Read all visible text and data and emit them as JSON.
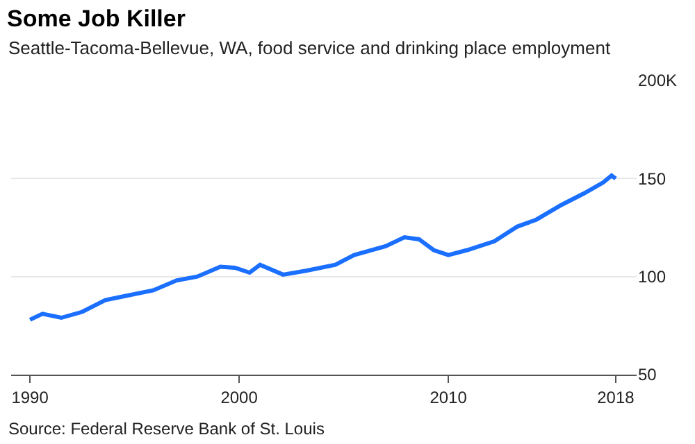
{
  "chart_data": {
    "type": "line",
    "title": "Some Job Killer",
    "subtitle": "Seattle-Tacoma-Bellevue, WA, food service and drinking place employment",
    "annotations": [
      "Source: Federal Reserve Bank of St. Louis"
    ],
    "x": [
      1990.0,
      1990.6,
      1991.5,
      1992.5,
      1993.6,
      1994.5,
      1995.9,
      1997.0,
      1998.0,
      1999.1,
      1999.8,
      2000.5,
      2001.0,
      2002.1,
      2003.2,
      2004.6,
      2005.5,
      2007.0,
      2007.9,
      2008.6,
      2009.3,
      2010.0,
      2010.9,
      2012.2,
      2013.3,
      2014.2,
      2015.4,
      2016.5,
      2017.4,
      2017.8,
      2018.0
    ],
    "series": [
      {
        "color": "#1a6fff",
        "values": [
          78,
          81,
          79,
          82,
          88,
          90,
          93,
          98,
          100,
          105,
          104.5,
          102,
          106,
          101,
          103,
          106,
          111,
          115.5,
          120,
          119,
          113.5,
          111,
          113.5,
          118,
          125.5,
          129,
          136.5,
          142.5,
          148,
          151.5,
          150
        ]
      }
    ],
    "xlim": [
      1989.1,
      2019.0
    ],
    "xticks": [
      1990,
      2000,
      2010,
      2018
    ],
    "ylim": [
      50,
      200
    ],
    "yticks": [
      50,
      100,
      150,
      {
        "value": 200,
        "label": "200K"
      }
    ],
    "grid": "y",
    "marker": "none",
    "line_style": "solid"
  }
}
